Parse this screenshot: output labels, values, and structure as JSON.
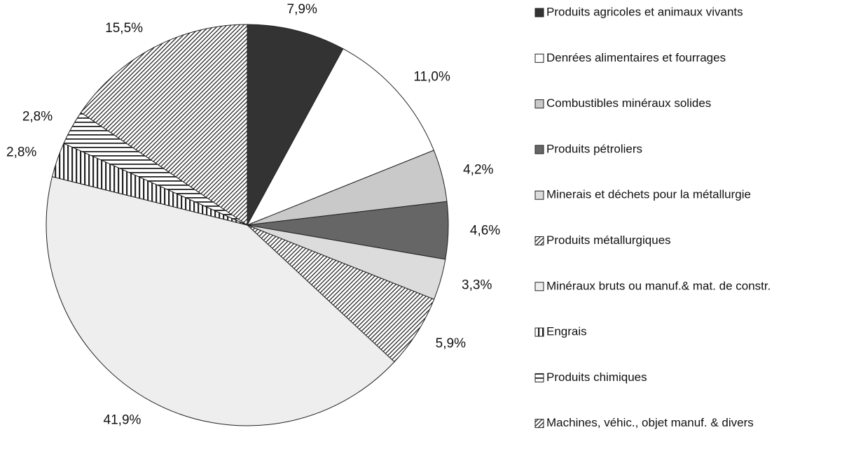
{
  "chart_data": {
    "type": "pie",
    "categories": [
      "Produits agricoles et animaux vivants",
      "Denrées alimentaires et fourrages",
      "Combustibles minéraux solides",
      "Produits pétroliers",
      "Minerais et déchets pour la métallurgie",
      "Produits métallurgiques",
      "Minéraux bruts ou manuf.& mat. de constr.",
      "Engrais",
      "Produits chimiques",
      "Machines, véhic., objet manuf. & divers"
    ],
    "values": [
      7.9,
      11.0,
      4.2,
      4.6,
      3.3,
      5.9,
      41.9,
      2.8,
      2.8,
      15.5
    ],
    "value_labels": [
      "7,9%",
      "11,0%",
      "4,2%",
      "4,6%",
      "3,3%",
      "5,9%",
      "41,9%",
      "2,8%",
      "2,8%",
      "15,5%"
    ],
    "colors": [
      "#333333",
      "#ffffff",
      "#c9c9c9",
      "#666666",
      "#dcdcdc",
      "#ffffff",
      "#eeeeee",
      "#ffffff",
      "#ffffff",
      "#ffffff"
    ],
    "patterns": [
      "solid",
      "solid",
      "solid",
      "solid",
      "solid",
      "diagonal",
      "solid",
      "vertical",
      "horizontal",
      "diagonal"
    ],
    "legend": "right"
  }
}
